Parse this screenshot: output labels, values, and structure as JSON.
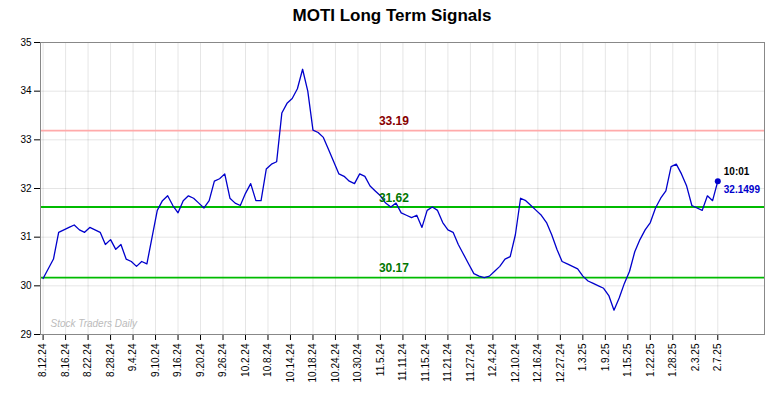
{
  "chart_data": {
    "type": "line",
    "title": "MOTI Long Term Signals",
    "background_color": "#ffffff",
    "grid": true,
    "x": [
      0,
      1,
      2,
      3,
      4,
      5,
      6,
      7,
      8,
      9,
      10,
      11,
      12,
      13,
      14,
      15,
      16,
      17,
      18,
      19,
      20,
      21,
      22,
      23,
      24,
      25,
      26,
      27,
      28,
      29,
      30,
      31,
      32,
      33,
      34,
      35,
      36,
      37,
      38,
      39,
      40,
      41,
      42,
      43,
      44,
      45,
      46,
      47,
      48,
      49,
      50,
      51,
      52,
      53,
      54,
      55,
      56,
      57,
      58,
      59,
      60,
      61,
      62,
      63,
      64,
      65,
      66,
      67,
      68,
      69,
      70,
      71,
      72,
      73,
      74,
      75,
      76,
      77,
      78,
      79,
      80,
      81,
      82,
      83,
      84,
      85,
      86,
      87,
      88,
      89,
      90,
      91,
      92,
      93,
      94,
      95,
      96,
      97,
      98,
      99,
      100,
      101,
      102,
      103,
      104,
      105,
      106,
      107,
      108,
      109,
      110,
      111,
      112,
      113,
      114,
      115,
      116,
      117,
      118,
      119,
      120,
      121,
      122,
      123,
      124,
      125,
      126,
      127,
      128,
      129,
      130
    ],
    "series": [
      {
        "color": "#0000cc",
        "values": [
          30.15,
          30.35,
          30.55,
          31.1,
          31.15,
          31.2,
          31.25,
          31.15,
          31.1,
          31.2,
          31.15,
          31.1,
          30.85,
          30.95,
          30.75,
          30.85,
          30.55,
          30.5,
          30.4,
          30.5,
          30.45,
          31.0,
          31.55,
          31.75,
          31.85,
          31.65,
          31.5,
          31.75,
          31.85,
          31.8,
          31.7,
          31.6,
          31.75,
          32.15,
          32.2,
          32.3,
          31.8,
          31.7,
          31.65,
          31.9,
          32.1,
          31.75,
          31.75,
          32.4,
          32.5,
          32.55,
          33.55,
          33.75,
          33.85,
          34.05,
          34.45,
          34.0,
          33.2,
          33.15,
          33.05,
          32.8,
          32.55,
          32.3,
          32.25,
          32.15,
          32.1,
          32.3,
          32.25,
          32.05,
          31.95,
          31.85,
          31.7,
          31.62,
          31.7,
          31.5,
          31.45,
          31.4,
          31.45,
          31.2,
          31.55,
          31.62,
          31.55,
          31.3,
          31.15,
          31.1,
          30.85,
          30.65,
          30.45,
          30.25,
          30.2,
          30.17,
          30.2,
          30.3,
          30.4,
          30.55,
          30.6,
          31.05,
          31.8,
          31.75,
          31.65,
          31.55,
          31.45,
          31.3,
          31.05,
          30.75,
          30.5,
          30.45,
          30.4,
          30.35,
          30.2,
          30.1,
          30.05,
          30.0,
          29.95,
          29.8,
          29.5,
          29.75,
          30.05,
          30.3,
          30.7,
          30.95,
          31.15,
          31.3,
          31.6,
          31.8,
          31.95,
          32.45,
          32.5,
          32.3,
          32.05,
          31.65,
          31.6,
          31.55,
          31.85,
          31.75,
          32.15
        ]
      }
    ],
    "xlim": [
      -0.5,
      139
    ],
    "xticks": [
      {
        "value": 0,
        "label": "8.12.24"
      },
      {
        "value": 4.333333333333333,
        "label": "8.16.24"
      },
      {
        "value": 8.666666666666666,
        "label": "8.22.24"
      },
      {
        "value": 13,
        "label": "8.28.24"
      },
      {
        "value": 17.333333333333332,
        "label": "9.4.24"
      },
      {
        "value": 21.666666666666668,
        "label": "9.10.24"
      },
      {
        "value": 26,
        "label": "9.16.24"
      },
      {
        "value": 30.333333333333332,
        "label": "9.20.24"
      },
      {
        "value": 34.666666666666664,
        "label": "9.26.24"
      },
      {
        "value": 39,
        "label": "10.2.24"
      },
      {
        "value": 43.333333333333336,
        "label": "10.8.24"
      },
      {
        "value": 47.666666666666664,
        "label": "10.14.24"
      },
      {
        "value": 52,
        "label": "10.18.24"
      },
      {
        "value": 56.333333333333336,
        "label": "10.24.24"
      },
      {
        "value": 60.666666666666664,
        "label": "10.30.24"
      },
      {
        "value": 65,
        "label": "11.5.24"
      },
      {
        "value": 69.33333333333333,
        "label": "11.11.24"
      },
      {
        "value": 73.66666666666667,
        "label": "11.15.24"
      },
      {
        "value": 78,
        "label": "11.21.24"
      },
      {
        "value": 82.33333333333333,
        "label": "11.27.24"
      },
      {
        "value": 86.66666666666667,
        "label": "12.4.24"
      },
      {
        "value": 91,
        "label": "12.10.24"
      },
      {
        "value": 95.33333333333333,
        "label": "12.16.24"
      },
      {
        "value": 99.66666666666667,
        "label": "12.27.24"
      },
      {
        "value": 104,
        "label": "1.3.25"
      },
      {
        "value": 108.33333333333333,
        "label": "1.9.25"
      },
      {
        "value": 112.66666666666667,
        "label": "1.15.25"
      },
      {
        "value": 117,
        "label": "1.22.25"
      },
      {
        "value": 121.33333333333333,
        "label": "1.28.25"
      },
      {
        "value": 125.66666666666667,
        "label": "2.3.25"
      },
      {
        "value": 130,
        "label": "2.7.25"
      }
    ],
    "ylim": [
      29,
      35
    ],
    "yticks": [
      29,
      30,
      31,
      32,
      33,
      34,
      35
    ],
    "reference_lines": [
      {
        "y": 33.19,
        "color": "#ffaaaa",
        "label": "33.19",
        "label_color": "#880000"
      },
      {
        "y": 31.62,
        "color": "#00bb00",
        "label": "31.62",
        "label_color": "#007700"
      },
      {
        "y": 30.17,
        "color": "#00bb00",
        "label": "30.17",
        "label_color": "#007700"
      }
    ],
    "last_point": {
      "label": "10:01",
      "value_label": "32.1499",
      "color": "#0000cc"
    },
    "watermark": {
      "text": "Stock Traders Daily",
      "color": "#bbbbbb"
    }
  }
}
